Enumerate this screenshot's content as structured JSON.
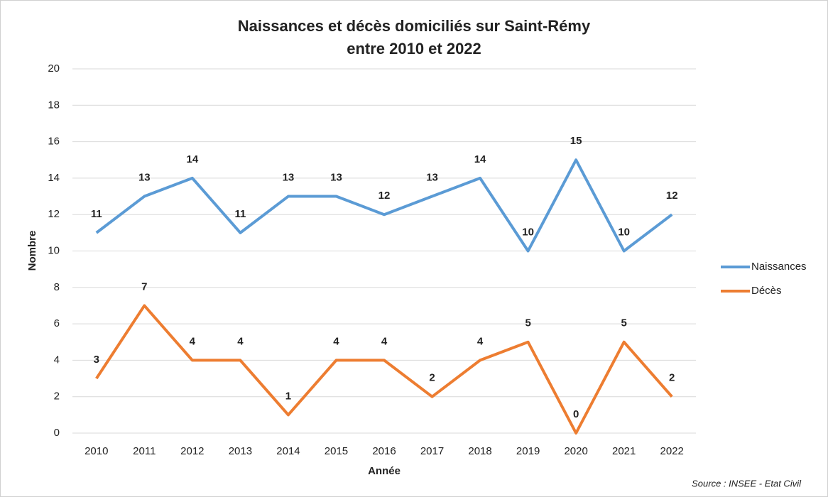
{
  "chart_data": {
    "type": "line",
    "title": [
      "Naissances et décès domiciliés sur Saint-Rémy",
      "entre 2010 et 2022"
    ],
    "x_label": "Année",
    "y_label": "Nombre",
    "categories": [
      "2010",
      "2011",
      "2012",
      "2013",
      "2014",
      "2015",
      "2016",
      "2017",
      "2018",
      "2019",
      "2020",
      "2021",
      "2022"
    ],
    "series": [
      {
        "name": "Naissances",
        "color": "#5b9bd5",
        "values": [
          11,
          13,
          14,
          11,
          13,
          13,
          12,
          13,
          14,
          10,
          15,
          10,
          12
        ]
      },
      {
        "name": "Décès",
        "color": "#ed7d31",
        "values": [
          3,
          7,
          4,
          4,
          1,
          4,
          4,
          2,
          4,
          5,
          0,
          5,
          2
        ]
      }
    ],
    "ylim": [
      0,
      20
    ],
    "yticks": [
      0,
      2,
      4,
      6,
      8,
      10,
      12,
      14,
      16,
      18,
      20
    ],
    "grid": true,
    "legend": "right",
    "source": "Source : INSEE - Etat Civil"
  }
}
